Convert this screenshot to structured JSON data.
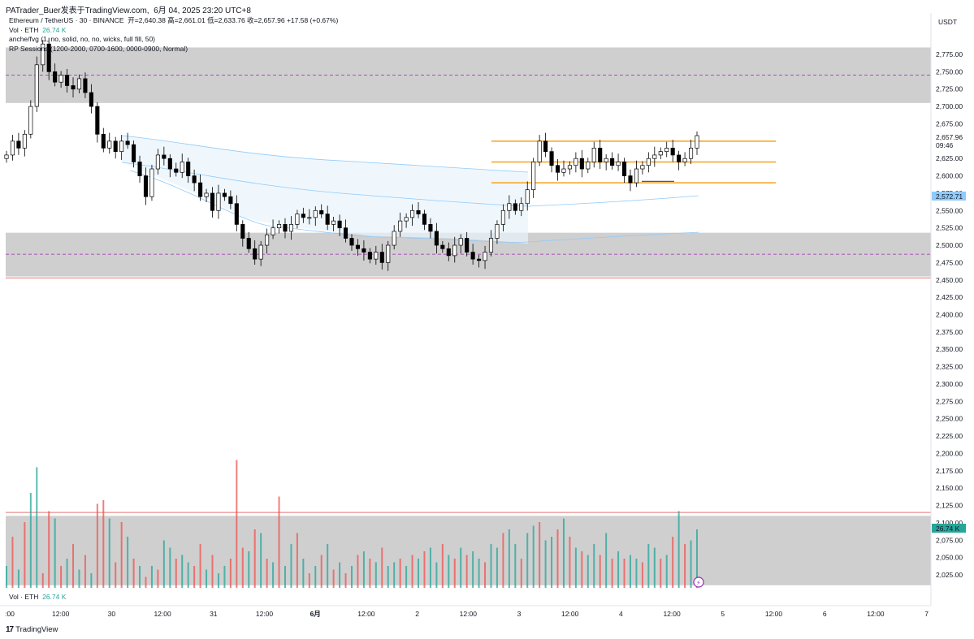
{
  "header": {
    "credit": "PATrader_Buer发表于TradingView.com,",
    "datetime": "6月 04, 2025 23:20 UTC+8"
  },
  "legend": {
    "symbol_line": "Ethereum / TetherUS · 30 · BINANCE",
    "ohlc": "开=2,640.38  高=2,661.01  低=2,633.76  收=2,657.96  +17.58 (+0.67%)",
    "vol_label": "Vol · ETH",
    "vol_value": "26.74 K",
    "indicator1": "anche/fvg (1, no, solid, no, no, wicks, full fill, 50)",
    "indicator2": "RP Sessions (1200-2000, 0700-1600, 0000-0900, Normal)"
  },
  "volume_legend": {
    "label": "Vol · ETH",
    "value": "26.74 K"
  },
  "brand": {
    "name": "TradingView",
    "logo_text": "17"
  },
  "price_axis": {
    "currency": "USDT",
    "ticks": [
      "2,775.00",
      "2,750.00",
      "2,725.00",
      "2,700.00",
      "2,675.00",
      "2,650.00",
      "2,625.00",
      "2,600.00",
      "2,575.00",
      "2,550.00",
      "2,525.00",
      "2,500.00",
      "2,475.00",
      "2,450.00",
      "2,425.00",
      "2,400.00",
      "2,375.00",
      "2,350.00",
      "2,325.00",
      "2,300.00",
      "2,275.00",
      "2,250.00",
      "2,225.00",
      "2,200.00",
      "2,175.00",
      "2,150.00",
      "2,125.00",
      "2,100.00",
      "2,075.00",
      "2,050.00",
      "2,025.00"
    ],
    "last_price": "2,657.96",
    "countdown": "09:46",
    "ma_price": "2,572.71",
    "vol_badge": "26.74 K"
  },
  "time_axis": {
    "labels": [
      ":00",
      "12:00",
      "30",
      "12:00",
      "31",
      "12:00",
      "6月",
      "12:00",
      "2",
      "12:00",
      "3",
      "12:00",
      "4",
      "12:00",
      "5",
      "12:00",
      "6",
      "12:00",
      "7"
    ]
  },
  "colors": {
    "up": "#26a69a",
    "down": "#ef5350",
    "candle": "#000000",
    "zone": "#cfcfcf",
    "orange": "#f7a21b",
    "band": "#90caf9",
    "midline": "#9c27b0"
  },
  "chart_data": {
    "type": "candlestick",
    "symbol": "ETHUSDT",
    "interval": "30",
    "exchange": "BINANCE",
    "last_bar": {
      "open": 2640.38,
      "high": 2661.01,
      "low": 2633.76,
      "close": 2657.96,
      "change": 17.58,
      "change_pct": 0.67
    },
    "ylim": [
      2010,
      2800
    ],
    "price_closes": [
      2630,
      2650,
      2640,
      2660,
      2700,
      2760,
      2790,
      2750,
      2735,
      2745,
      2730,
      2725,
      2740,
      2720,
      2700,
      2660,
      2640,
      2650,
      2635,
      2650,
      2645,
      2620,
      2600,
      2570,
      2610,
      2630,
      2625,
      2610,
      2605,
      2620,
      2600,
      2590,
      2570,
      2575,
      2550,
      2575,
      2570,
      2560,
      2530,
      2510,
      2495,
      2480,
      2500,
      2515,
      2525,
      2530,
      2520,
      2530,
      2545,
      2540,
      2540,
      2550,
      2545,
      2530,
      2535,
      2525,
      2510,
      2500,
      2495,
      2490,
      2480,
      2490,
      2475,
      2500,
      2520,
      2535,
      2540,
      2550,
      2545,
      2530,
      2520,
      2500,
      2495,
      2485,
      2500,
      2510,
      2490,
      2480,
      2478,
      2490,
      2510,
      2530,
      2550,
      2560,
      2550,
      2560,
      2580,
      2620,
      2650,
      2635,
      2615,
      2605,
      2610,
      2615,
      2625,
      2610,
      2620,
      2640,
      2620,
      2625,
      2615,
      2620,
      2600,
      2590,
      2610,
      2615,
      2625,
      2630,
      2635,
      2640,
      2630,
      2620,
      2625,
      2640,
      2658
    ],
    "horizontal_lines": [
      {
        "name": "orange-top",
        "price": 2650
      },
      {
        "name": "orange-mid",
        "price": 2620
      },
      {
        "name": "orange-low",
        "price": 2590
      },
      {
        "name": "upper-zone-mid",
        "price": 2745
      },
      {
        "name": "lower-zone-mid",
        "price": 2487
      }
    ],
    "zones": [
      {
        "name": "upper-zone",
        "top": 2785,
        "bottom": 2705
      },
      {
        "name": "lower-zone",
        "top": 2518,
        "bottom": 2455
      },
      {
        "name": "volume-zone",
        "top": 2110,
        "bottom": 2010
      }
    ],
    "volume": [
      30,
      70,
      25,
      90,
      130,
      165,
      20,
      105,
      95,
      30,
      40,
      60,
      25,
      45,
      20,
      115,
      120,
      95,
      35,
      90,
      70,
      40,
      30,
      15,
      30,
      25,
      65,
      55,
      40,
      45,
      35,
      30,
      60,
      25,
      45,
      20,
      30,
      40,
      175,
      55,
      50,
      80,
      75,
      40,
      35,
      125,
      30,
      60,
      75,
      40,
      20,
      30,
      45,
      60,
      25,
      35,
      20,
      30,
      45,
      50,
      40,
      35,
      55,
      30,
      35,
      40,
      30,
      45,
      40,
      50,
      55,
      35,
      60,
      45,
      40,
      55,
      45,
      50,
      40,
      35,
      60,
      55,
      75,
      80,
      60,
      40,
      75,
      85,
      90,
      65,
      70,
      80,
      95,
      70,
      55,
      50,
      45,
      60,
      45,
      75,
      40,
      50,
      40,
      45,
      40,
      35,
      60,
      55,
      40,
      45,
      70,
      105,
      60,
      65,
      80
    ],
    "volume_colors": [
      "up",
      "down",
      "up",
      "down",
      "up",
      "up",
      "down",
      "down",
      "up",
      "down",
      "up",
      "down",
      "up",
      "down",
      "up",
      "down",
      "down",
      "up",
      "down",
      "down",
      "up",
      "down",
      "up",
      "down",
      "up",
      "down",
      "up",
      "up",
      "down",
      "up",
      "up",
      "down",
      "down",
      "up",
      "down",
      "up",
      "up",
      "down",
      "down",
      "down",
      "up",
      "down",
      "up",
      "down",
      "up",
      "down",
      "up",
      "up",
      "down",
      "up",
      "down",
      "up",
      "down",
      "up",
      "down",
      "up",
      "down",
      "up",
      "down",
      "up",
      "down",
      "up",
      "down",
      "up",
      "up",
      "down",
      "up",
      "down",
      "up",
      "down",
      "up",
      "up",
      "down",
      "up",
      "down",
      "up",
      "down",
      "up",
      "up",
      "down",
      "up",
      "up",
      "down",
      "up",
      "up",
      "down",
      "up",
      "up",
      "down",
      "up",
      "up",
      "down",
      "up",
      "down",
      "up",
      "down",
      "up",
      "up",
      "down",
      "up",
      "down",
      "up",
      "down",
      "up",
      "up",
      "down",
      "up",
      "up",
      "down",
      "up",
      "down",
      "up",
      "down",
      "up",
      "up"
    ]
  }
}
